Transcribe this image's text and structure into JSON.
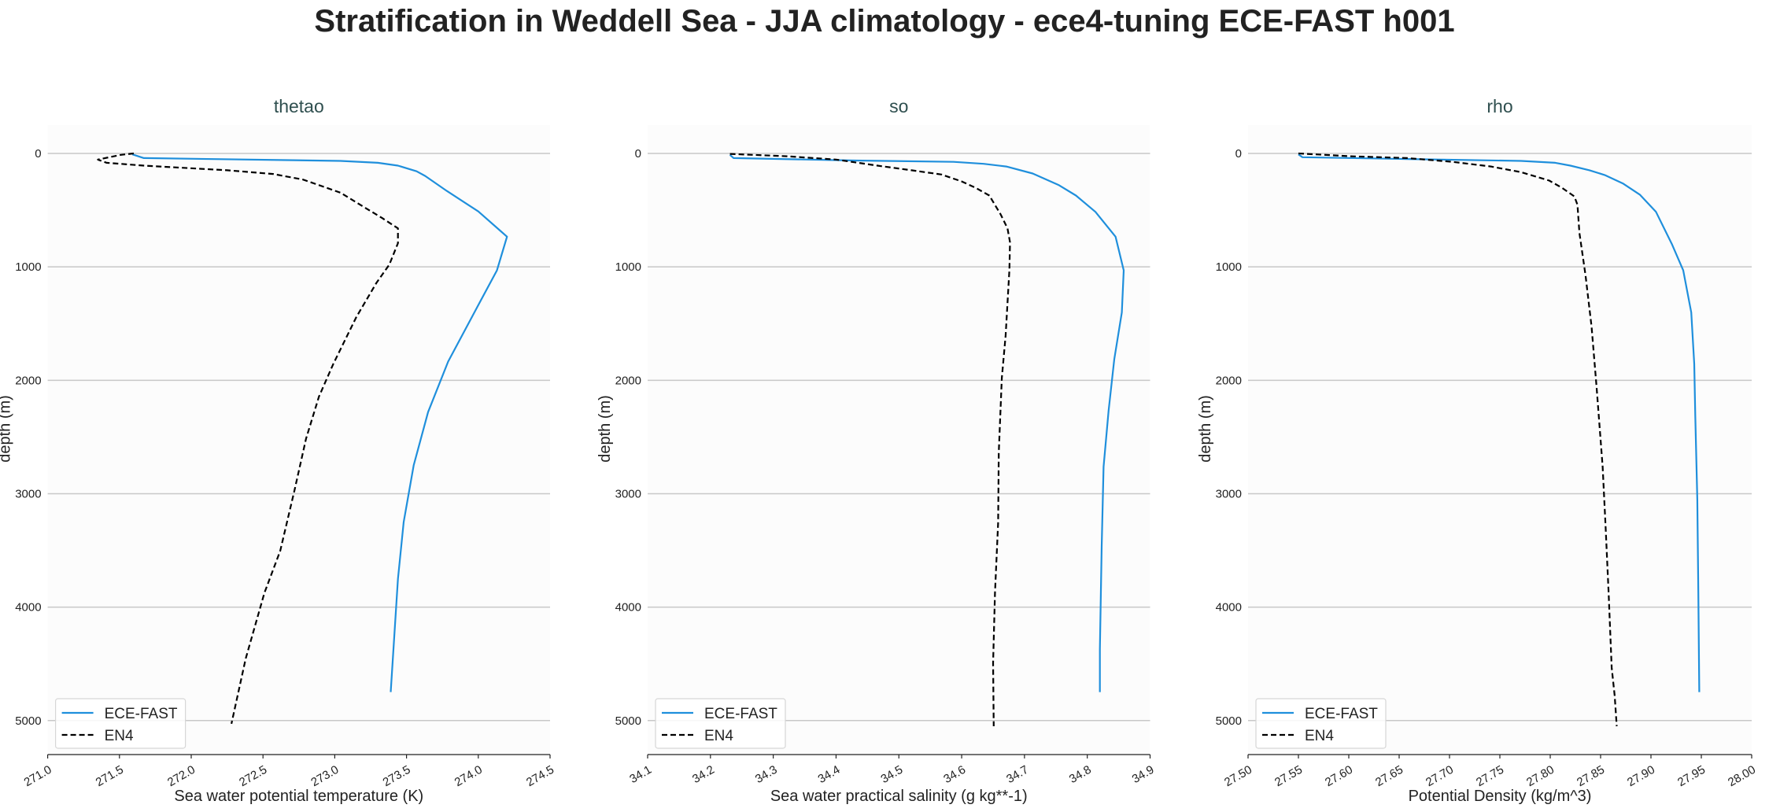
{
  "title": "Stratification in Weddell Sea - JJA climatology - ece4-tuning ECE-FAST h001",
  "colors": {
    "ECE-FAST": "#1f8fdc",
    "EN4": "#000000",
    "grid": "#c8c8c8",
    "plot_bg": "#fcfcfc"
  },
  "chart_data": [
    {
      "type": "line",
      "title": "thetao",
      "xlabel": "Sea water potential temperature (K)",
      "ylabel": "depth (m)",
      "xlim": [
        271.0,
        274.5
      ],
      "ylim": [
        5300,
        -250
      ],
      "y_inverted": true,
      "xticks": [
        "271.0",
        "271.5",
        "272.0",
        "272.5",
        "273.0",
        "273.5",
        "274.0",
        "274.5"
      ],
      "yticks": [
        "0",
        "1000",
        "2000",
        "3000",
        "4000",
        "5000"
      ],
      "grid": "horizontal",
      "legend": "lower-left",
      "series": [
        {
          "name": "ECE-FAST",
          "style": "solid",
          "x": [
            271.59,
            271.67,
            273.04,
            273.3,
            273.44,
            273.57,
            273.63,
            273.78,
            274.0,
            274.2,
            274.13,
            273.99,
            273.79,
            273.65,
            273.55,
            273.48,
            273.44,
            273.39
          ],
          "y": [
            8,
            41,
            66,
            82,
            107,
            157,
            198,
            330,
            511,
            734,
            1031,
            1360,
            1835,
            2280,
            2750,
            3249,
            3751,
            4749
          ]
        },
        {
          "name": "EN4",
          "style": "dashed",
          "x": [
            271.6,
            271.51,
            271.35,
            271.41,
            271.67,
            272.25,
            272.57,
            272.78,
            273.04,
            273.2,
            273.33,
            273.44,
            273.44,
            273.38,
            273.29,
            273.15,
            272.99,
            272.89,
            272.8,
            272.72,
            272.62,
            272.51,
            272.38,
            272.28
          ],
          "y": [
            0,
            12,
            54,
            82,
            107,
            148,
            181,
            231,
            346,
            470,
            569,
            660,
            791,
            981,
            1142,
            1443,
            1855,
            2144,
            2515,
            2968,
            3504,
            3875,
            4452,
            5029
          ]
        }
      ]
    },
    {
      "type": "line",
      "title": "so",
      "xlabel": "Sea water practical salinity (g kg**-1)",
      "ylabel": "depth (m)",
      "xlim": [
        34.1,
        34.9
      ],
      "ylim": [
        5300,
        -250
      ],
      "y_inverted": true,
      "xticks": [
        "34.1",
        "34.2",
        "34.3",
        "34.4",
        "34.5",
        "34.6",
        "34.7",
        "34.8",
        "34.9"
      ],
      "yticks": [
        "0",
        "1000",
        "2000",
        "3000",
        "4000",
        "5000"
      ],
      "grid": "horizontal",
      "legend": "lower-left",
      "series": [
        {
          "name": "ECE-FAST",
          "style": "solid",
          "x": [
            34.231,
            34.237,
            34.43,
            34.587,
            34.635,
            34.671,
            34.713,
            34.755,
            34.782,
            34.813,
            34.845,
            34.858,
            34.855,
            34.843,
            34.834,
            34.826,
            34.823,
            34.82,
            34.82
          ],
          "y": [
            12,
            41,
            62,
            74,
            91,
            115,
            177,
            280,
            371,
            515,
            734,
            1031,
            1402,
            1814,
            2267,
            2762,
            3463,
            4370,
            4749
          ]
        },
        {
          "name": "EN4",
          "style": "dashed",
          "x": [
            34.231,
            34.322,
            34.4,
            34.466,
            34.52,
            34.568,
            34.6,
            34.623,
            34.644,
            34.662,
            34.673,
            34.677,
            34.676,
            34.67,
            34.664,
            34.659,
            34.658,
            34.653,
            34.65,
            34.651
          ],
          "y": [
            4,
            25,
            54,
            107,
            148,
            186,
            247,
            305,
            371,
            536,
            660,
            783,
            1031,
            1608,
            1979,
            2638,
            3257,
            3875,
            4493,
            5050
          ]
        }
      ]
    },
    {
      "type": "line",
      "title": "rho",
      "xlabel": "Potential Density (kg/m^3)",
      "ylabel": "depth (m)",
      "xlim": [
        27.5,
        28.0
      ],
      "ylim": [
        5300,
        -250
      ],
      "y_inverted": true,
      "xticks": [
        "27.50",
        "27.55",
        "27.60",
        "27.65",
        "27.70",
        "27.75",
        "27.80",
        "27.85",
        "27.90",
        "27.95",
        "28.00"
      ],
      "yticks": [
        "0",
        "1000",
        "2000",
        "3000",
        "4000",
        "5000"
      ],
      "grid": "horizontal",
      "legend": "lower-left",
      "series": [
        {
          "name": "ECE-FAST",
          "style": "solid",
          "x": [
            27.55,
            27.554,
            27.658,
            27.771,
            27.805,
            27.82,
            27.839,
            27.854,
            27.872,
            27.889,
            27.905,
            27.921,
            27.932,
            27.94,
            27.943,
            27.944,
            27.946,
            27.947,
            27.948
          ],
          "y": [
            8,
            33,
            49,
            66,
            82,
            107,
            148,
            190,
            264,
            363,
            515,
            804,
            1031,
            1402,
            1855,
            2309,
            3051,
            3875,
            4749
          ]
        },
        {
          "name": "EN4",
          "style": "dashed",
          "x": [
            27.55,
            27.602,
            27.658,
            27.703,
            27.741,
            27.771,
            27.799,
            27.812,
            27.824,
            27.827,
            27.829,
            27.835,
            27.841,
            27.846,
            27.852,
            27.855,
            27.858,
            27.861,
            27.864,
            27.866
          ],
          "y": [
            0,
            25,
            41,
            74,
            115,
            165,
            239,
            305,
            379,
            453,
            701,
            1072,
            1525,
            2061,
            2762,
            3298,
            3875,
            4535,
            4782,
            5050
          ]
        }
      ]
    }
  ]
}
